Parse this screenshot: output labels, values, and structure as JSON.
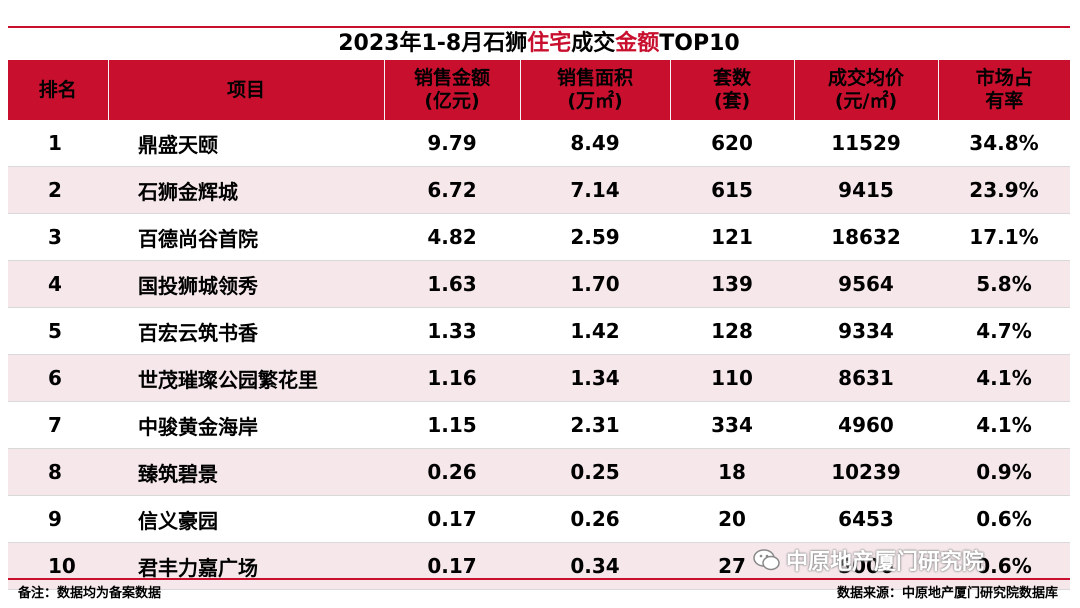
{
  "title": {
    "prefix": "2023年1-8月石狮",
    "hl1": "住宅",
    "mid": "成交",
    "hl2": "金额",
    "suffix": "TOP10"
  },
  "columns": [
    {
      "line1": "排名",
      "line2": ""
    },
    {
      "line1": "项目",
      "line2": ""
    },
    {
      "line1": "销售金额",
      "line2": "(亿元)"
    },
    {
      "line1": "销售面积",
      "line2": "(万㎡)"
    },
    {
      "line1": "套数",
      "line2": "(套)"
    },
    {
      "line1": "成交均价",
      "line2": "(元/㎡)"
    },
    {
      "line1": "市场占",
      "line2": "有率"
    }
  ],
  "rows": [
    {
      "rank": "1",
      "project": "鼎盛天颐",
      "amount": "9.79",
      "area": "8.49",
      "units": "620",
      "price": "11529",
      "share": "34.8%"
    },
    {
      "rank": "2",
      "project": "石狮金辉城",
      "amount": "6.72",
      "area": "7.14",
      "units": "615",
      "price": "9415",
      "share": "23.9%"
    },
    {
      "rank": "3",
      "project": "百德尚谷首院",
      "amount": "4.82",
      "area": "2.59",
      "units": "121",
      "price": "18632",
      "share": "17.1%"
    },
    {
      "rank": "4",
      "project": "国投狮城领秀",
      "amount": "1.63",
      "area": "1.70",
      "units": "139",
      "price": "9564",
      "share": "5.8%"
    },
    {
      "rank": "5",
      "project": "百宏云筑书香",
      "amount": "1.33",
      "area": "1.42",
      "units": "128",
      "price": "9334",
      "share": "4.7%"
    },
    {
      "rank": "6",
      "project": "世茂璀璨公园繁花里",
      "amount": "1.16",
      "area": "1.34",
      "units": "110",
      "price": "8631",
      "share": "4.1%"
    },
    {
      "rank": "7",
      "project": "中骏黄金海岸",
      "amount": "1.15",
      "area": "2.31",
      "units": "334",
      "price": "4960",
      "share": "4.1%"
    },
    {
      "rank": "8",
      "project": "臻筑碧景",
      "amount": "0.26",
      "area": "0.25",
      "units": "18",
      "price": "10239",
      "share": "0.9%"
    },
    {
      "rank": "9",
      "project": "信义豪园",
      "amount": "0.17",
      "area": "0.26",
      "units": "20",
      "price": "6453",
      "share": "0.6%"
    },
    {
      "rank": "10",
      "project": "君丰力嘉广场",
      "amount": "0.17",
      "area": "0.34",
      "units": "27",
      "price": "5006",
      "share": "0.6%"
    }
  ],
  "footer": {
    "note": "备注：数据均为备案数据",
    "source": "数据来源：中原地产厦门研究院数据库"
  },
  "wechat_label": "中原地产厦门研究院",
  "colors": {
    "accent": "#c8102e",
    "alt_row": "#f6e8ea"
  }
}
